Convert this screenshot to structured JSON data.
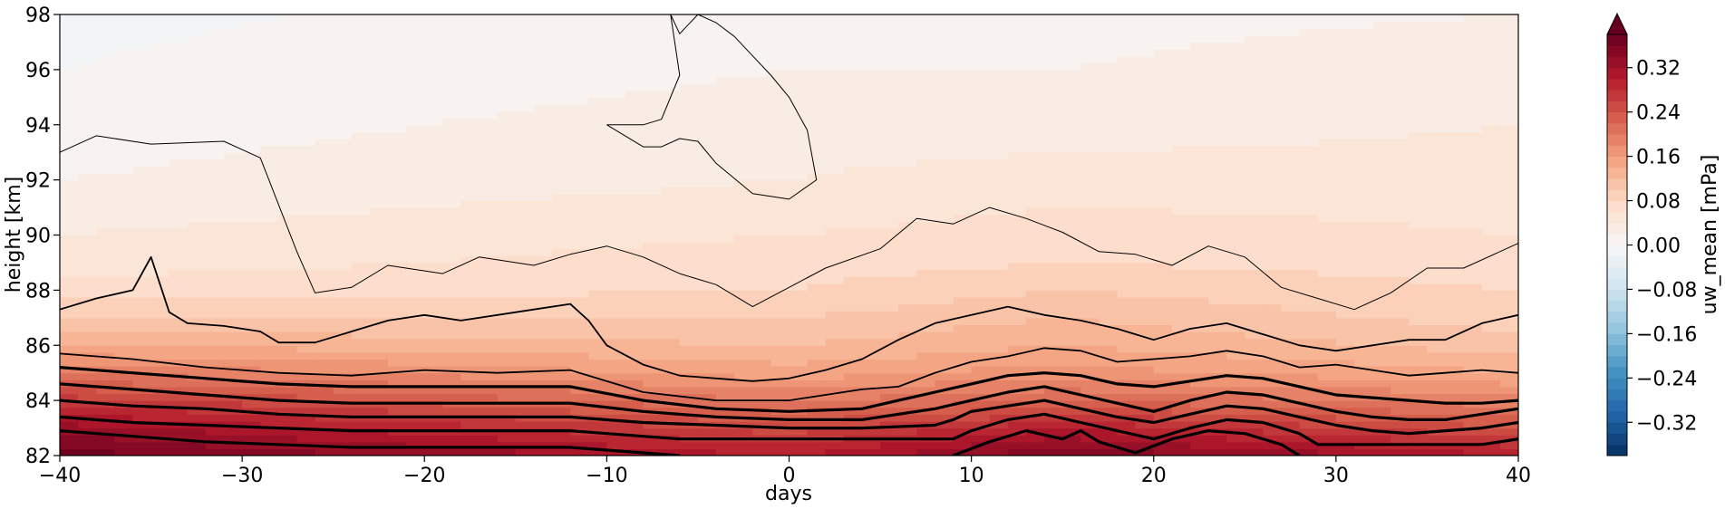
{
  "chart_data": {
    "type": "heatmap",
    "subtype": "filled-contour",
    "title": "",
    "xlabel": "days",
    "ylabel": "height [km]",
    "xlim": [
      -40,
      40
    ],
    "ylim": [
      82,
      98
    ],
    "xticks": [
      -40,
      -30,
      -20,
      -10,
      0,
      10,
      20,
      30,
      40
    ],
    "xtick_labels": [
      "−40",
      "−30",
      "−20",
      "−10",
      "0",
      "10",
      "20",
      "30",
      "40"
    ],
    "yticks": [
      82,
      84,
      86,
      88,
      90,
      92,
      94,
      96,
      98
    ],
    "ytick_labels": [
      "82",
      "84",
      "86",
      "88",
      "90",
      "92",
      "94",
      "96",
      "98"
    ],
    "colormap": "RdBu_r",
    "colorbar": {
      "label": "uw_mean [mPa]",
      "range": [
        -0.38,
        0.38
      ],
      "extend": "max",
      "ticks": [
        0.32,
        0.24,
        0.16,
        0.08,
        0.0,
        -0.08,
        -0.16,
        -0.24,
        -0.32
      ],
      "tick_labels": [
        "0.32",
        "0.24",
        "0.16",
        "0.08",
        "0.00",
        "−0.08",
        "−0.16",
        "−0.24",
        "−0.32"
      ],
      "levels_step": 0.02
    },
    "field_profile": {
      "height_km": [
        82,
        83,
        84,
        85,
        86,
        87,
        88,
        89,
        90,
        92,
        94,
        96,
        98
      ],
      "uw_mean_mPa_at_day_minus40": [
        0.37,
        0.33,
        0.27,
        0.2,
        0.14,
        0.1,
        0.07,
        0.05,
        0.04,
        0.02,
        0.01,
        0.0,
        -0.005
      ],
      "uw_mean_mPa_at_day_0": [
        0.3,
        0.25,
        0.2,
        0.15,
        0.12,
        0.1,
        0.08,
        0.07,
        0.06,
        0.04,
        0.03,
        0.02,
        0.01
      ],
      "uw_mean_mPa_at_day_15": [
        0.36,
        0.3,
        0.22,
        0.17,
        0.14,
        0.12,
        0.1,
        0.08,
        0.07,
        0.05,
        0.03,
        0.02,
        0.015
      ],
      "uw_mean_mPa_at_day_40": [
        0.3,
        0.24,
        0.19,
        0.14,
        0.11,
        0.09,
        0.08,
        0.07,
        0.06,
        0.05,
        0.04,
        0.03,
        0.02
      ]
    },
    "contour_lines": [
      {
        "name": "contour-thin-top",
        "style": "thin",
        "x": [
          -40,
          -38,
          -35,
          -31,
          -29,
          -27,
          -26,
          -24,
          -22,
          -19,
          -17,
          -14,
          -12,
          -10,
          -8,
          -6,
          -4,
          -2,
          0,
          2,
          5,
          7,
          9,
          11,
          13,
          15,
          17,
          19,
          21,
          23,
          25,
          27,
          29,
          31,
          33,
          35,
          37,
          40
        ],
        "y": [
          93,
          93.6,
          93.3,
          93.4,
          92.8,
          89.4,
          87.9,
          88.1,
          88.9,
          88.6,
          89.2,
          88.9,
          89.3,
          89.6,
          89.2,
          88.6,
          88.2,
          87.4,
          88.1,
          88.8,
          89.5,
          90.6,
          90.4,
          91.0,
          90.6,
          90.1,
          89.4,
          89.3,
          88.9,
          89.6,
          89.2,
          88.1,
          87.7,
          87.3,
          87.9,
          88.8,
          88.8,
          89.7
        ]
      },
      {
        "name": "contour-thin-island",
        "style": "thin",
        "x": [
          -10,
          -8,
          -7,
          -6,
          -5,
          -4,
          -2,
          0,
          1.5,
          1,
          0,
          -1,
          -2,
          -3,
          -4,
          -5,
          -6,
          -6.5,
          -6,
          -7,
          -8,
          -10
        ],
        "y": [
          94,
          93.2,
          93.2,
          93.5,
          93.4,
          92.6,
          91.5,
          91.3,
          92.0,
          93.8,
          95.0,
          95.8,
          96.5,
          97.2,
          97.7,
          98,
          97.3,
          98,
          95.8,
          94.2,
          94.0,
          94
        ]
      },
      {
        "name": "contour-mid-1",
        "style": "medium",
        "x": [
          -40,
          -38,
          -36,
          -35,
          -34,
          -33,
          -31,
          -29,
          -28,
          -26,
          -24,
          -22,
          -20,
          -18,
          -16,
          -14,
          -12,
          -11,
          -10,
          -8,
          -6,
          -4,
          -2,
          0,
          2,
          4,
          6,
          8,
          10,
          12,
          14,
          16,
          18,
          20,
          22,
          24,
          26,
          28,
          30,
          32,
          34,
          36,
          38,
          40
        ],
        "y": [
          87.3,
          87.7,
          88.0,
          89.2,
          87.2,
          86.8,
          86.7,
          86.5,
          86.1,
          86.1,
          86.5,
          86.9,
          87.1,
          86.9,
          87.1,
          87.3,
          87.5,
          86.9,
          86.0,
          85.3,
          84.9,
          84.8,
          84.7,
          84.8,
          85.1,
          85.5,
          86.2,
          86.8,
          87.1,
          87.4,
          87.1,
          86.9,
          86.6,
          86.2,
          86.6,
          86.8,
          86.4,
          86.0,
          85.8,
          86.0,
          86.2,
          86.2,
          86.8,
          87.1
        ]
      },
      {
        "name": "contour-mid-2",
        "style": "medium",
        "x": [
          -40,
          -36,
          -32,
          -28,
          -24,
          -20,
          -16,
          -12,
          -8,
          -4,
          0,
          2,
          4,
          6,
          8,
          10,
          12,
          14,
          16,
          18,
          20,
          22,
          24,
          26,
          28,
          30,
          32,
          34,
          36,
          38,
          40
        ],
        "y": [
          85.7,
          85.5,
          85.2,
          85.0,
          84.9,
          85.1,
          85.0,
          85.1,
          84.3,
          84.0,
          84.0,
          84.2,
          84.4,
          84.5,
          85.0,
          85.4,
          85.6,
          85.9,
          85.8,
          85.4,
          85.5,
          85.6,
          85.8,
          85.6,
          85.2,
          85.3,
          85.1,
          84.9,
          85.0,
          85.1,
          85.0
        ]
      },
      {
        "name": "contour-thick-1",
        "style": "thick",
        "x": [
          -40,
          -36,
          -32,
          -28,
          -24,
          -20,
          -16,
          -12,
          -8,
          -4,
          0,
          4,
          6,
          8,
          10,
          12,
          14,
          16,
          18,
          20,
          22,
          24,
          26,
          28,
          30,
          32,
          34,
          36,
          38,
          40
        ],
        "y": [
          85.2,
          85.0,
          84.8,
          84.6,
          84.5,
          84.5,
          84.5,
          84.5,
          84.0,
          83.7,
          83.6,
          83.7,
          84.0,
          84.3,
          84.6,
          84.9,
          85.0,
          84.9,
          84.6,
          84.5,
          84.7,
          84.9,
          84.8,
          84.5,
          84.2,
          84.1,
          84.0,
          83.9,
          83.9,
          84.0
        ]
      },
      {
        "name": "contour-thick-2",
        "style": "thick",
        "x": [
          -40,
          -36,
          -32,
          -28,
          -24,
          -20,
          -16,
          -12,
          -8,
          -4,
          0,
          4,
          6,
          8,
          10,
          12,
          14,
          16,
          18,
          20,
          22,
          24,
          26,
          28,
          30,
          32,
          34,
          36,
          38,
          40
        ],
        "y": [
          84.6,
          84.4,
          84.2,
          84.0,
          83.9,
          83.9,
          83.9,
          83.9,
          83.6,
          83.4,
          83.3,
          83.3,
          83.5,
          83.7,
          84.0,
          84.3,
          84.5,
          84.2,
          83.9,
          83.6,
          84.0,
          84.3,
          84.2,
          83.9,
          83.6,
          83.4,
          83.3,
          83.3,
          83.5,
          83.7
        ]
      },
      {
        "name": "contour-thick-3",
        "style": "thick",
        "x": [
          -40,
          -36,
          -32,
          -28,
          -24,
          -20,
          -16,
          -12,
          -8,
          -4,
          0,
          4,
          8,
          9,
          10,
          12,
          14,
          16,
          18,
          20,
          22,
          24,
          26,
          28,
          30,
          32,
          34,
          36,
          38,
          40
        ],
        "y": [
          84.0,
          83.8,
          83.7,
          83.5,
          83.4,
          83.4,
          83.4,
          83.4,
          83.2,
          83.1,
          83.0,
          83.0,
          83.1,
          83.3,
          83.6,
          83.8,
          84.0,
          83.7,
          83.4,
          83.2,
          83.5,
          83.8,
          83.7,
          83.4,
          83.1,
          82.9,
          82.8,
          82.9,
          83.0,
          83.2
        ]
      },
      {
        "name": "contour-thick-4",
        "style": "thick",
        "x": [
          -40,
          -36,
          -32,
          -28,
          -24,
          -20,
          -16,
          -12,
          -8,
          -6,
          9,
          10,
          12,
          14,
          16,
          18,
          20,
          22,
          24,
          26,
          28,
          29,
          38,
          40
        ],
        "y": [
          83.4,
          83.2,
          83.1,
          83.0,
          82.9,
          82.9,
          82.9,
          82.9,
          82.7,
          82.6,
          82.6,
          82.9,
          83.3,
          83.5,
          83.2,
          82.9,
          82.6,
          83.0,
          83.3,
          83.2,
          82.8,
          82.4,
          82.4,
          82.6
        ]
      },
      {
        "name": "contour-thick-5",
        "style": "thick",
        "x": [
          -40,
          -36,
          -32,
          -28,
          -24,
          -20,
          -16,
          -12,
          -8,
          -6
        ],
        "y": [
          82.9,
          82.7,
          82.5,
          82.4,
          82.3,
          82.3,
          82.3,
          82.3,
          82.1,
          82.0
        ]
      },
      {
        "name": "contour-thick-6",
        "style": "thick",
        "x": [
          9,
          11,
          13,
          15,
          16,
          17,
          19,
          21,
          23,
          25,
          27,
          28
        ],
        "y": [
          82.0,
          82.5,
          82.9,
          82.6,
          82.9,
          82.5,
          82.1,
          82.6,
          82.9,
          82.8,
          82.4,
          82.0
        ]
      }
    ]
  }
}
